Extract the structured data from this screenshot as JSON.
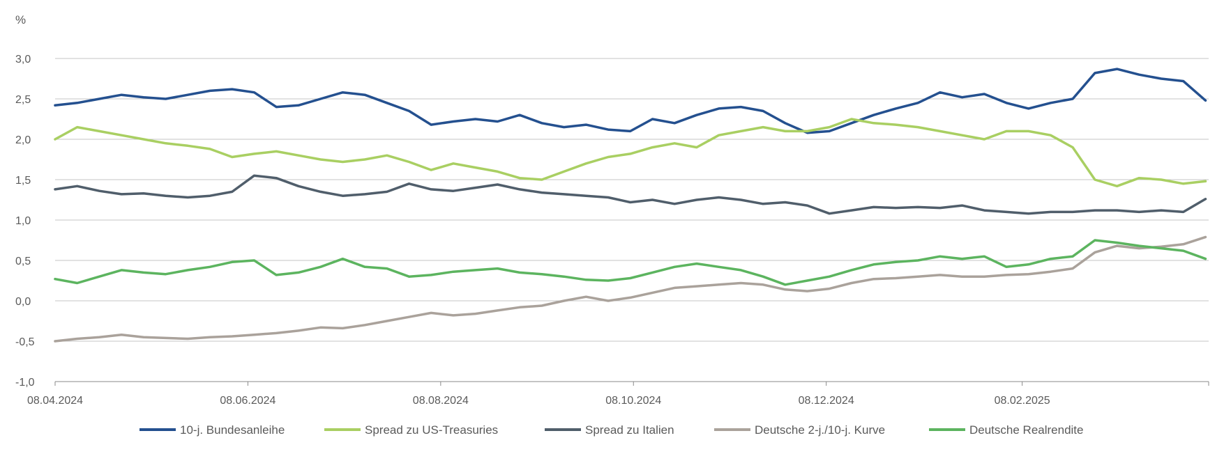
{
  "chart_data": {
    "type": "line",
    "ylabel": "%",
    "ylim": [
      -1.0,
      3.0
    ],
    "y_ticks": [
      "3,0",
      "2,5",
      "2,0",
      "1,5",
      "1,0",
      "0,5",
      "0,0",
      "-0,5",
      "-1,0"
    ],
    "y_tick_values": [
      3.0,
      2.5,
      2.0,
      1.5,
      1.0,
      0.5,
      0.0,
      -0.5,
      -1.0
    ],
    "xlim": [
      "2024-04-08",
      "2025-04-08"
    ],
    "x_ticks": [
      "08.04.2024",
      "08.06.2024",
      "08.08.2024",
      "08.10.2024",
      "08.12.2024",
      "08.02.2025"
    ],
    "x_tick_dates": [
      "2024-04-08",
      "2024-06-08",
      "2024-08-08",
      "2024-10-08",
      "2024-12-08",
      "2025-02-08"
    ],
    "grid": "horizontal",
    "legend_position": "bottom",
    "x": [
      "2024-04-08",
      "2024-04-15",
      "2024-04-22",
      "2024-04-29",
      "2024-05-06",
      "2024-05-13",
      "2024-05-20",
      "2024-05-27",
      "2024-06-03",
      "2024-06-10",
      "2024-06-17",
      "2024-06-24",
      "2024-07-01",
      "2024-07-08",
      "2024-07-15",
      "2024-07-22",
      "2024-07-29",
      "2024-08-05",
      "2024-08-12",
      "2024-08-19",
      "2024-08-26",
      "2024-09-02",
      "2024-09-09",
      "2024-09-16",
      "2024-09-23",
      "2024-09-30",
      "2024-10-07",
      "2024-10-14",
      "2024-10-21",
      "2024-10-28",
      "2024-11-04",
      "2024-11-11",
      "2024-11-18",
      "2024-11-25",
      "2024-12-02",
      "2024-12-09",
      "2024-12-16",
      "2024-12-23",
      "2024-12-30",
      "2025-01-06",
      "2025-01-13",
      "2025-01-20",
      "2025-01-27",
      "2025-02-03",
      "2025-02-10",
      "2025-02-17",
      "2025-02-24",
      "2025-03-03",
      "2025-03-10",
      "2025-03-17",
      "2025-03-24",
      "2025-03-31",
      "2025-04-07"
    ],
    "series": [
      {
        "name": "10-j. Bundesanleihe",
        "color": "#24508f",
        "values": [
          2.42,
          2.45,
          2.5,
          2.55,
          2.52,
          2.5,
          2.55,
          2.6,
          2.62,
          2.58,
          2.4,
          2.42,
          2.5,
          2.58,
          2.55,
          2.45,
          2.35,
          2.18,
          2.22,
          2.25,
          2.22,
          2.3,
          2.2,
          2.15,
          2.18,
          2.12,
          2.1,
          2.25,
          2.2,
          2.3,
          2.38,
          2.4,
          2.35,
          2.2,
          2.08,
          2.1,
          2.2,
          2.3,
          2.38,
          2.45,
          2.58,
          2.52,
          2.56,
          2.45,
          2.38,
          2.45,
          2.5,
          2.82,
          2.87,
          2.8,
          2.75,
          2.72,
          2.48
        ]
      },
      {
        "name": "Spread zu US-Treasuries",
        "color": "#a9cf62",
        "values": [
          2.0,
          2.15,
          2.1,
          2.05,
          2.0,
          1.95,
          1.92,
          1.88,
          1.78,
          1.82,
          1.85,
          1.8,
          1.75,
          1.72,
          1.75,
          1.8,
          1.72,
          1.62,
          1.7,
          1.65,
          1.6,
          1.52,
          1.5,
          1.6,
          1.7,
          1.78,
          1.82,
          1.9,
          1.95,
          1.9,
          2.05,
          2.1,
          2.15,
          2.1,
          2.1,
          2.15,
          2.25,
          2.2,
          2.18,
          2.15,
          2.1,
          2.05,
          2.0,
          2.1,
          2.1,
          2.05,
          1.9,
          1.5,
          1.42,
          1.52,
          1.5,
          1.45,
          1.48
        ]
      },
      {
        "name": "Spread zu Italien",
        "color": "#505e6b",
        "values": [
          1.38,
          1.42,
          1.36,
          1.32,
          1.33,
          1.3,
          1.28,
          1.3,
          1.35,
          1.55,
          1.52,
          1.42,
          1.35,
          1.3,
          1.32,
          1.35,
          1.45,
          1.38,
          1.36,
          1.4,
          1.44,
          1.38,
          1.34,
          1.32,
          1.3,
          1.28,
          1.22,
          1.25,
          1.2,
          1.25,
          1.28,
          1.25,
          1.2,
          1.22,
          1.18,
          1.08,
          1.12,
          1.16,
          1.15,
          1.16,
          1.15,
          1.18,
          1.12,
          1.1,
          1.08,
          1.1,
          1.1,
          1.12,
          1.12,
          1.1,
          1.12,
          1.1,
          1.26
        ]
      },
      {
        "name": "Deutsche 2-j./10-j. Kurve",
        "color": "#aaa29b",
        "values": [
          -0.5,
          -0.47,
          -0.45,
          -0.42,
          -0.45,
          -0.46,
          -0.47,
          -0.45,
          -0.44,
          -0.42,
          -0.4,
          -0.37,
          -0.33,
          -0.34,
          -0.3,
          -0.25,
          -0.2,
          -0.15,
          -0.18,
          -0.16,
          -0.12,
          -0.08,
          -0.06,
          0.0,
          0.05,
          0.0,
          0.04,
          0.1,
          0.16,
          0.18,
          0.2,
          0.22,
          0.2,
          0.14,
          0.12,
          0.15,
          0.22,
          0.27,
          0.28,
          0.3,
          0.32,
          0.3,
          0.3,
          0.32,
          0.33,
          0.36,
          0.4,
          0.6,
          0.68,
          0.65,
          0.67,
          0.7,
          0.79
        ]
      },
      {
        "name": "Deutsche Realrendite",
        "color": "#5cb45f",
        "values": [
          0.27,
          0.22,
          0.3,
          0.38,
          0.35,
          0.33,
          0.38,
          0.42,
          0.48,
          0.5,
          0.32,
          0.35,
          0.42,
          0.52,
          0.42,
          0.4,
          0.3,
          0.32,
          0.36,
          0.38,
          0.4,
          0.35,
          0.33,
          0.3,
          0.26,
          0.25,
          0.28,
          0.35,
          0.42,
          0.46,
          0.42,
          0.38,
          0.3,
          0.2,
          0.25,
          0.3,
          0.38,
          0.45,
          0.48,
          0.5,
          0.55,
          0.52,
          0.55,
          0.42,
          0.45,
          0.52,
          0.55,
          0.75,
          0.72,
          0.68,
          0.65,
          0.62,
          0.52
        ]
      }
    ]
  }
}
